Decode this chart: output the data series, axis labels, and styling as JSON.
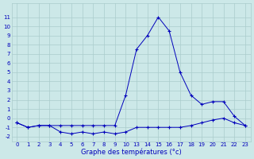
{
  "xlabel": "Graphe des températures (°c)",
  "background_color": "#cce8e8",
  "grid_color": "#aacccc",
  "line_color": "#0000bb",
  "x_labels": [
    "0",
    "1",
    "2",
    "3",
    "4",
    "5",
    "6",
    "7",
    "8",
    "9",
    "10",
    "13",
    "14",
    "15",
    "16",
    "17",
    "18",
    "19",
    "20",
    "21",
    "22",
    "23"
  ],
  "temp_max": [
    -0.5,
    -1.0,
    -0.8,
    -0.8,
    -0.8,
    -0.8,
    -0.8,
    -0.8,
    -0.8,
    -0.8,
    2.5,
    7.5,
    9.0,
    11.0,
    9.5,
    5.0,
    2.5,
    1.5,
    1.8,
    1.8,
    0.2,
    -0.8
  ],
  "temp_min": [
    -0.5,
    -1.0,
    -0.8,
    -0.8,
    -1.5,
    -1.7,
    -1.5,
    -1.7,
    -1.5,
    -1.7,
    -1.5,
    -1.0,
    -1.0,
    -1.0,
    -1.0,
    -1.0,
    -0.8,
    -0.5,
    -0.2,
    0.0,
    -0.5,
    -0.8
  ],
  "ylim": [
    -2.5,
    12.5
  ],
  "yticks": [
    -2,
    -1,
    0,
    1,
    2,
    3,
    4,
    5,
    6,
    7,
    8,
    9,
    10,
    11
  ]
}
